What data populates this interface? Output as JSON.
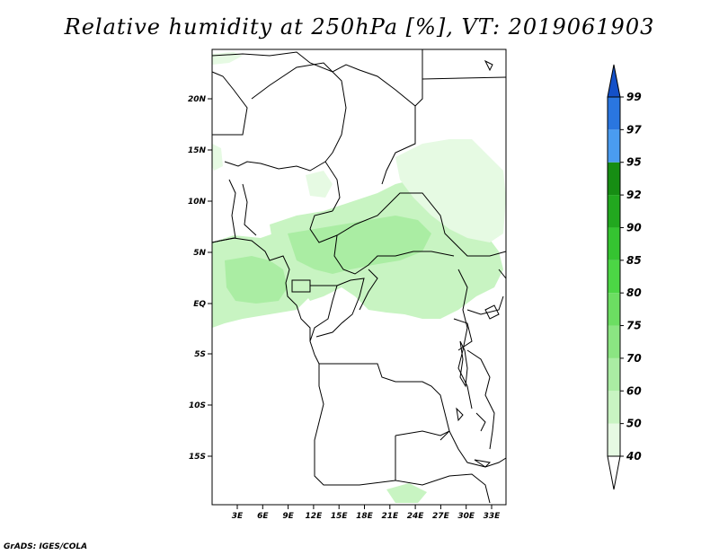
{
  "title": "Relative humidity at 250hPa [%], VT: 2019061903",
  "credit": "GrADS: IGES/COLA",
  "map": {
    "lat_labels": [
      "20N",
      "15N",
      "10N",
      "5N",
      "EQ",
      "5S",
      "10S",
      "15S"
    ],
    "lon_labels": [
      "3E",
      "6E",
      "9E",
      "12E",
      "15E",
      "18E",
      "21E",
      "24E",
      "27E",
      "30E",
      "33E"
    ],
    "region_lon_range": [
      0,
      35
    ],
    "region_lat_range": [
      -20,
      24
    ]
  },
  "colorbar": {
    "labels": [
      "40",
      "50",
      "60",
      "70",
      "75",
      "80",
      "85",
      "90",
      "92",
      "95",
      "97",
      "99"
    ],
    "colors": [
      "#ffffff",
      "#e6fae3",
      "#c8f4c2",
      "#aaeda3",
      "#8be582",
      "#6cde62",
      "#4cd645",
      "#35c431",
      "#22a81f",
      "#168d13",
      "#4a9cf0",
      "#2a76e0",
      "#1450c8"
    ]
  }
}
